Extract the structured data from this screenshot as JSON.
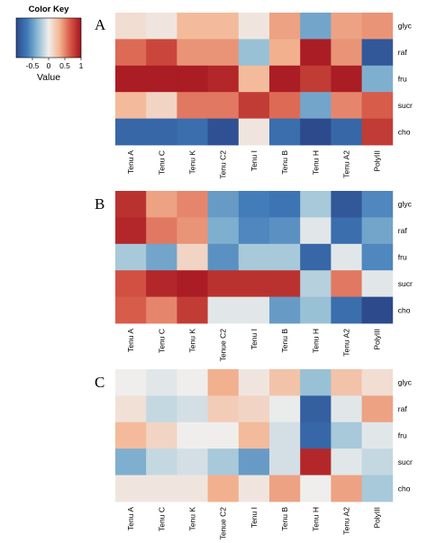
{
  "chart_data": [
    {
      "type": "heatmap",
      "panel": "A",
      "rows": [
        "glyc",
        "raf",
        "fru",
        "sucr",
        "cho"
      ],
      "columns": [
        "Tenu A",
        "Tenu C",
        "Tenu K",
        "Tenu C2",
        "Tenu I",
        "Tenu B",
        "Tenu H",
        "Tenu A2",
        "PolyIII"
      ],
      "values": [
        [
          0.1,
          0.05,
          0.3,
          0.3,
          0.05,
          0.4,
          -0.45,
          0.4,
          0.45
        ],
        [
          0.6,
          0.75,
          0.45,
          0.45,
          -0.3,
          0.35,
          0.95,
          0.45,
          -0.9
        ],
        [
          0.95,
          0.95,
          0.95,
          0.9,
          0.3,
          0.95,
          0.8,
          0.95,
          -0.4
        ],
        [
          0.3,
          0.15,
          0.55,
          0.55,
          0.8,
          0.6,
          -0.45,
          0.5,
          0.65
        ],
        [
          -0.8,
          -0.8,
          -0.75,
          -0.95,
          0.05,
          -0.75,
          -1.0,
          -0.8,
          0.8
        ]
      ]
    },
    {
      "type": "heatmap",
      "panel": "B",
      "rows": [
        "glyc",
        "raf",
        "fru",
        "sucr",
        "cho"
      ],
      "columns": [
        "Tenu A",
        "Tenu C",
        "Tenu K",
        "Tenue C2",
        "Tenu I",
        "Tenu B",
        "Tenu H",
        "Tenu A2",
        "PolyIII"
      ],
      "values": [
        [
          0.85,
          0.4,
          0.5,
          -0.5,
          -0.65,
          -0.7,
          -0.25,
          -0.9,
          -0.6
        ],
        [
          0.9,
          0.55,
          0.45,
          -0.4,
          -0.6,
          -0.55,
          -0.05,
          -0.75,
          -0.45
        ],
        [
          -0.25,
          -0.45,
          0.15,
          -0.55,
          -0.25,
          -0.25,
          -0.8,
          -0.05,
          -0.6
        ],
        [
          0.7,
          0.9,
          0.95,
          0.85,
          0.85,
          0.85,
          -0.2,
          0.55,
          -0.05
        ],
        [
          0.65,
          0.5,
          0.8,
          -0.05,
          -0.05,
          -0.5,
          -0.3,
          -0.75,
          -1.0
        ]
      ]
    },
    {
      "type": "heatmap",
      "panel": "C",
      "rows": [
        "glyc",
        "raf",
        "fru",
        "sucr",
        "cho"
      ],
      "columns": [
        "Tenu A",
        "Tenu C",
        "Tenu K",
        "Tenue C2",
        "Tenu I",
        "Tenu B",
        "Tenu H",
        "Tenu A2",
        "PolyIII"
      ],
      "values": [
        [
          0.0,
          -0.05,
          0.0,
          0.35,
          0.05,
          0.25,
          -0.3,
          0.25,
          0.1
        ],
        [
          0.08,
          -0.15,
          -0.1,
          0.2,
          0.15,
          -0.02,
          -0.85,
          -0.05,
          0.4
        ],
        [
          0.3,
          0.15,
          0.0,
          0.0,
          0.3,
          -0.1,
          -0.8,
          -0.25,
          -0.05
        ],
        [
          -0.4,
          -0.15,
          -0.1,
          -0.25,
          -0.5,
          -0.1,
          0.9,
          -0.05,
          -0.15
        ],
        [
          0.05,
          0.05,
          0.05,
          0.35,
          0.05,
          0.4,
          0.0,
          0.4,
          -0.25
        ]
      ]
    }
  ],
  "color_key": {
    "title": "Color Key",
    "xlabel": "Value",
    "ticks": [
      "-0.5",
      "0",
      "0.5",
      "1"
    ],
    "tick_values": [
      -0.5,
      0,
      0.5,
      1
    ],
    "range": [
      -1,
      1
    ],
    "palette": [
      "#2c4a8c",
      "#3f7ab8",
      "#8fbcd4",
      "#f0eeec",
      "#f3b592",
      "#d75746",
      "#a3131e"
    ]
  }
}
